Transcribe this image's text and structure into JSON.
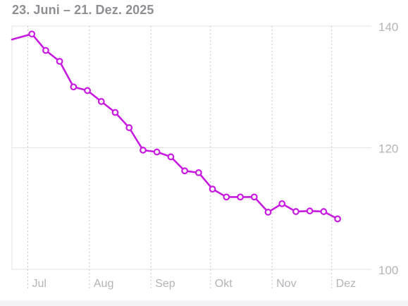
{
  "header": {
    "date_range": "23. Juni – 21. Dez. 2025"
  },
  "colors": {
    "series": "#c71ce0",
    "grid": "#e3e3e6",
    "vgrid": "#c7c7cc",
    "axis_text": "#b4b4b8",
    "title": "#8e8e93"
  },
  "chart_data": {
    "type": "line",
    "title": "",
    "xlabel": "",
    "ylabel": "",
    "ylim": [
      100,
      140
    ],
    "y_ticks": [
      140,
      120,
      100
    ],
    "x_ticks": [
      {
        "label": "Jul",
        "date": "2025-07-01"
      },
      {
        "label": "Aug",
        "date": "2025-08-01"
      },
      {
        "label": "Sep",
        "date": "2025-09-01"
      },
      {
        "label": "Okt",
        "date": "2025-10-01"
      },
      {
        "label": "Nov",
        "date": "2025-11-01"
      },
      {
        "label": "Dez",
        "date": "2025-12-01"
      }
    ],
    "xlim": [
      "2025-06-23",
      "2025-12-21"
    ],
    "series": [
      {
        "points": [
          {
            "x": "2025-06-23",
            "y": 137.8,
            "marker": false
          },
          {
            "x": "2025-07-03",
            "y": 138.7
          },
          {
            "x": "2025-07-10",
            "y": 136.0
          },
          {
            "x": "2025-07-17",
            "y": 134.2
          },
          {
            "x": "2025-07-24",
            "y": 130.0
          },
          {
            "x": "2025-07-31",
            "y": 129.4
          },
          {
            "x": "2025-08-07",
            "y": 127.6
          },
          {
            "x": "2025-08-14",
            "y": 125.8
          },
          {
            "x": "2025-08-21",
            "y": 123.3
          },
          {
            "x": "2025-08-28",
            "y": 119.6
          },
          {
            "x": "2025-09-04",
            "y": 119.3
          },
          {
            "x": "2025-09-11",
            "y": 118.5
          },
          {
            "x": "2025-09-18",
            "y": 116.2
          },
          {
            "x": "2025-09-25",
            "y": 115.9
          },
          {
            "x": "2025-10-02",
            "y": 113.2
          },
          {
            "x": "2025-10-09",
            "y": 111.9
          },
          {
            "x": "2025-10-16",
            "y": 111.9
          },
          {
            "x": "2025-10-23",
            "y": 111.9
          },
          {
            "x": "2025-10-30",
            "y": 109.4
          },
          {
            "x": "2025-11-06",
            "y": 110.8
          },
          {
            "x": "2025-11-13",
            "y": 109.5
          },
          {
            "x": "2025-11-20",
            "y": 109.6
          },
          {
            "x": "2025-11-27",
            "y": 109.5
          },
          {
            "x": "2025-12-04",
            "y": 108.3
          }
        ]
      }
    ]
  }
}
